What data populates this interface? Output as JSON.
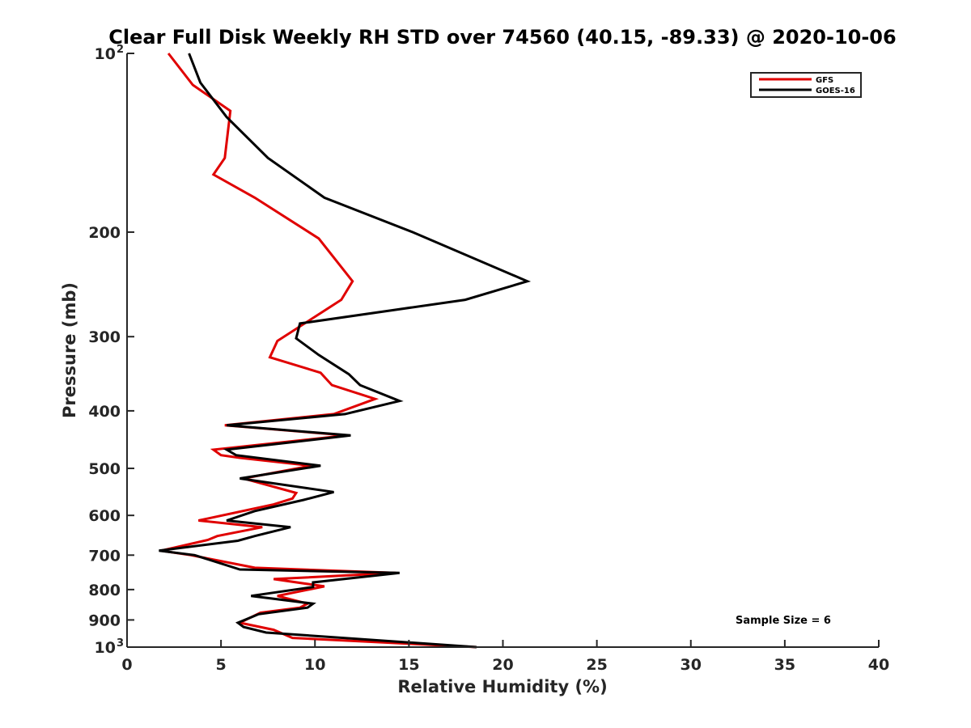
{
  "chart_data": {
    "type": "line",
    "title": "Clear Full Disk Weekly RH STD over 74560 (40.15, -89.33) @ 2020-10-06",
    "xlabel": "Relative Humidity (%)",
    "ylabel": "Pressure (mb)",
    "xlim": [
      0,
      40
    ],
    "ylim": [
      100,
      1000
    ],
    "y_scale": "log",
    "y_reversed": true,
    "grid": false,
    "legend_position": "top-right",
    "x_ticks": [
      "0",
      "5",
      "10",
      "15",
      "20",
      "25",
      "30",
      "35",
      "40"
    ],
    "y_ticks": [
      {
        "value": 100,
        "label": "10",
        "exp": "2"
      },
      {
        "value": 200,
        "label": "200",
        "exp": ""
      },
      {
        "value": 300,
        "label": "300",
        "exp": ""
      },
      {
        "value": 400,
        "label": "400",
        "exp": ""
      },
      {
        "value": 500,
        "label": "500",
        "exp": ""
      },
      {
        "value": 600,
        "label": "600",
        "exp": ""
      },
      {
        "value": 700,
        "label": "700",
        "exp": ""
      },
      {
        "value": 800,
        "label": "800",
        "exp": ""
      },
      {
        "value": 900,
        "label": "900",
        "exp": ""
      },
      {
        "value": 1000,
        "label": "10",
        "exp": "3"
      }
    ],
    "annotation": "Sample Size = 6",
    "series": [
      {
        "name": "GFS",
        "color": "#e00000",
        "points": [
          [
            2.2,
            100
          ],
          [
            3.5,
            113
          ],
          [
            5.5,
            125
          ],
          [
            5.2,
            150
          ],
          [
            4.6,
            160
          ],
          [
            6.8,
            175
          ],
          [
            10.2,
            205
          ],
          [
            12.0,
            242
          ],
          [
            11.4,
            260
          ],
          [
            8.0,
            305
          ],
          [
            7.6,
            325
          ],
          [
            10.3,
            345
          ],
          [
            10.9,
            362
          ],
          [
            13.2,
            382
          ],
          [
            11.0,
            405
          ],
          [
            5.2,
            423
          ],
          [
            11.7,
            440
          ],
          [
            4.6,
            465
          ],
          [
            5.0,
            475
          ],
          [
            6.0,
            480
          ],
          [
            9.8,
            495
          ],
          [
            6.2,
            520
          ],
          [
            9.0,
            550
          ],
          [
            8.8,
            562
          ],
          [
            7.8,
            575
          ],
          [
            3.8,
            612
          ],
          [
            7.2,
            628
          ],
          [
            4.8,
            650
          ],
          [
            4.3,
            660
          ],
          [
            1.8,
            688
          ],
          [
            3.4,
            700
          ],
          [
            6.8,
            735
          ],
          [
            14.3,
            750
          ],
          [
            7.8,
            768
          ],
          [
            10.5,
            790
          ],
          [
            8.0,
            820
          ],
          [
            9.6,
            845
          ],
          [
            9.2,
            858
          ],
          [
            7.1,
            875
          ],
          [
            6.0,
            910
          ],
          [
            7.8,
            935
          ],
          [
            8.8,
            965
          ],
          [
            18.6,
            1000
          ]
        ]
      },
      {
        "name": "GOES-16",
        "color": "#000000",
        "points": [
          [
            3.3,
            100
          ],
          [
            3.9,
            112
          ],
          [
            5.3,
            128
          ],
          [
            7.5,
            150
          ],
          [
            10.5,
            175
          ],
          [
            15.2,
            200
          ],
          [
            21.3,
            242
          ],
          [
            18.0,
            260
          ],
          [
            9.2,
            285
          ],
          [
            9.0,
            302
          ],
          [
            10.2,
            322
          ],
          [
            11.8,
            347
          ],
          [
            12.4,
            362
          ],
          [
            14.5,
            385
          ],
          [
            11.6,
            405
          ],
          [
            5.3,
            423
          ],
          [
            11.9,
            440
          ],
          [
            5.3,
            465
          ],
          [
            5.8,
            475
          ],
          [
            10.3,
            495
          ],
          [
            6.0,
            520
          ],
          [
            11.0,
            548
          ],
          [
            9.4,
            565
          ],
          [
            6.8,
            590
          ],
          [
            5.3,
            612
          ],
          [
            8.7,
            628
          ],
          [
            6.8,
            650
          ],
          [
            5.9,
            662
          ],
          [
            1.7,
            688
          ],
          [
            3.6,
            700
          ],
          [
            6.0,
            740
          ],
          [
            14.5,
            750
          ],
          [
            9.9,
            778
          ],
          [
            9.9,
            792
          ],
          [
            6.6,
            820
          ],
          [
            9.9,
            845
          ],
          [
            9.6,
            858
          ],
          [
            7.0,
            880
          ],
          [
            5.9,
            910
          ],
          [
            6.2,
            925
          ],
          [
            7.4,
            945
          ],
          [
            18.6,
            1000
          ]
        ]
      }
    ]
  }
}
